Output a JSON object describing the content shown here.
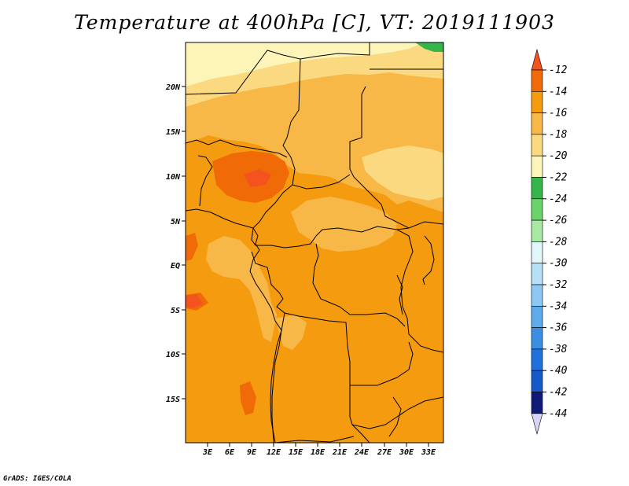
{
  "title": "Temperature at 400hPa [C], VT: 2019111903",
  "credit": "GrADS: IGES/COLA",
  "map": {
    "lon_range": [
      0,
      35
    ],
    "lat_range": [
      -20,
      25
    ],
    "lat_ticks": [
      "20N",
      "15N",
      "10N",
      "5N",
      "EQ",
      "5S",
      "10S",
      "15S"
    ],
    "lon_ticks": [
      "3E",
      "6E",
      "9E",
      "12E",
      "15E",
      "18E",
      "21E",
      "24E",
      "27E",
      "30E",
      "33E"
    ],
    "field_levels_present": [
      "-12 to -14",
      "-14 to -16",
      "-16 to -18",
      "-18 to -20",
      "-22 to -24"
    ]
  },
  "colorbar": {
    "labels": [
      "-12",
      "-14",
      "-16",
      "-18",
      "-20",
      "-22",
      "-24",
      "-26",
      "-28",
      "-30",
      "-32",
      "-34",
      "-36",
      "-38",
      "-40",
      "-42",
      "-44"
    ],
    "colors": [
      "#f4521e",
      "#f06a08",
      "#f59b0f",
      "#f8b847",
      "#fbd981",
      "#fdf5b8",
      "#36b54a",
      "#6ad46a",
      "#a7e8a2",
      "#e0f6f8",
      "#b7e0f6",
      "#8cc8f2",
      "#5eabeb",
      "#3b8fe3",
      "#2071d9",
      "#155ac8",
      "#101a78"
    ],
    "top_arrow_color": "#f4521e",
    "bottom_arrow_color": "#d8d4f4"
  }
}
